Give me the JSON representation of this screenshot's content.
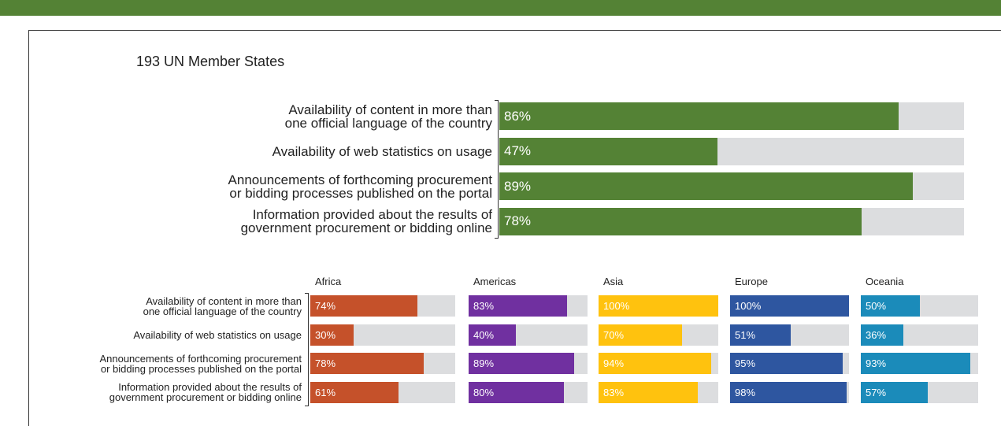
{
  "chart_data": [
    {
      "type": "bar",
      "orientation": "horizontal",
      "title": "193 UN Member States",
      "categories": [
        "Availability of content in more than one official language of the country",
        "Availability of web statistics on usage",
        "Announcements of forthcoming procurement or bidding processes published on the portal",
        "Information provided about the results of government procurement or bidding online"
      ],
      "values": [
        86,
        47,
        89,
        78
      ],
      "value_labels": [
        "86%",
        "47%",
        "89%",
        "78%"
      ],
      "color": "#548235",
      "background_color": "#dcdddf",
      "xlim": [
        0,
        100
      ]
    },
    {
      "type": "small-multiple-bar",
      "orientation": "horizontal",
      "categories": [
        "Availability of content in more than one official language of the country",
        "Availability of web statistics on usage",
        "Announcements of forthcoming procurement or bidding processes published on the portal",
        "Information provided about the results of government procurement or bidding online"
      ],
      "series": [
        {
          "name": "Africa",
          "color": "#c5512a",
          "values": [
            74,
            30,
            78,
            61
          ],
          "value_labels": [
            "74%",
            "30%",
            "78%",
            "61%"
          ]
        },
        {
          "name": "Americas",
          "color": "#7030a0",
          "values": [
            83,
            40,
            89,
            80
          ],
          "value_labels": [
            "83%",
            "40%",
            "89%",
            "80%"
          ]
        },
        {
          "name": "Asia",
          "color": "#ffc20e",
          "values": [
            100,
            70,
            94,
            83
          ],
          "value_labels": [
            "100%",
            "70%",
            "94%",
            "83%"
          ]
        },
        {
          "name": "Europe",
          "color": "#2e56a0",
          "values": [
            100,
            51,
            95,
            98
          ],
          "value_labels": [
            "100%",
            "51%",
            "95%",
            "98%"
          ]
        },
        {
          "name": "Oceania",
          "color": "#1b8bba",
          "values": [
            50,
            36,
            93,
            57
          ],
          "value_labels": [
            "50%",
            "36%",
            "93%",
            "57%"
          ]
        }
      ],
      "background_color": "#dcdddf",
      "xlim": [
        0,
        100
      ]
    }
  ]
}
